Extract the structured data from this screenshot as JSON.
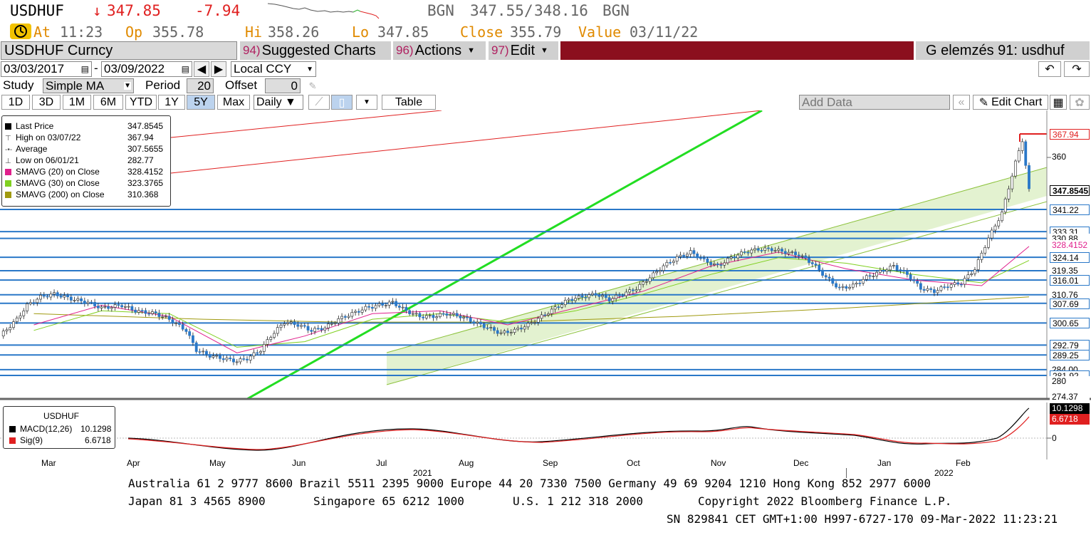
{
  "quote": {
    "ticker": "USDHUF",
    "arrow": "↓",
    "last": "347.85",
    "change": "-7.94",
    "bid_ccy": "BGN",
    "bid": "347.55",
    "sep": "/",
    "ask": "348.16",
    "ask_ccy": "BGN",
    "at_label": "At",
    "at_time": "11:23",
    "op_label": "Op",
    "op": "355.78",
    "hi_label": "Hi",
    "hi": "358.26",
    "lo_label": "Lo",
    "lo": "347.85",
    "close_label": "Close",
    "close": "355.79",
    "value_label": "Value",
    "value_date": "03/11/22"
  },
  "toolbar": {
    "security": "USDHUF Curncy",
    "suggested_num": "94)",
    "suggested_label": "Suggested Charts",
    "actions_num": "96)",
    "actions_label": "Actions",
    "edit_num": "97)",
    "edit_label": "Edit",
    "page_title": "G elemzés 91: usdhuf"
  },
  "controls": {
    "start_date": "03/03/2017",
    "dash": "-",
    "end_date": "03/09/2022",
    "currency": "Local CCY",
    "study_label": "Study",
    "study_value": "Simple MA",
    "period_label": "Period",
    "period_value": "20",
    "offset_label": "Offset",
    "offset_value": "0",
    "ranges": [
      "1D",
      "3D",
      "1M",
      "6M",
      "YTD",
      "1Y",
      "5Y",
      "Max"
    ],
    "active_range": "5Y",
    "frequency": "Daily ▼",
    "table_label": "Table",
    "add_data_placeholder": "Add Data",
    "edit_chart_label": "Edit Chart"
  },
  "legend": {
    "items": [
      {
        "label": "Last Price",
        "value": "347.8545",
        "color": "#000000",
        "marker": "square"
      },
      {
        "label": "High on 03/07/22",
        "value": "367.94",
        "color": "#555555",
        "marker": "high"
      },
      {
        "label": "Average",
        "value": "307.5655",
        "color": "#555555",
        "marker": "avg"
      },
      {
        "label": "Low on 06/01/21",
        "value": "282.77",
        "color": "#555555",
        "marker": "low"
      },
      {
        "label": "SMAVG (20)  on Close",
        "value": "328.4152",
        "color": "#e0208c",
        "marker": "square"
      },
      {
        "label": "SMAVG (30)  on Close",
        "value": "323.3765",
        "color": "#80d020",
        "marker": "square"
      },
      {
        "label": "SMAVG (200)  on Close",
        "value": "310.368",
        "color": "#a09a10",
        "marker": "square"
      }
    ]
  },
  "price_labels": {
    "high": "367.94",
    "tick_360": "360",
    "last": "347.8545",
    "levels": [
      "341.22",
      "333.31",
      "330.88",
      "328.4152",
      "324.14",
      "319.35",
      "316.01",
      "310.76",
      "307.69",
      "300.65",
      "292.79",
      "289.25",
      "284.00",
      "281.92",
      "280",
      "274.37"
    ]
  },
  "macd": {
    "title": "USDHUF",
    "macd_label": "MACD(12,26)",
    "macd_value": "10.1298",
    "sig_label": "Sig(9)",
    "sig_value": "6.6718",
    "macd_tag": "10.1298",
    "sig_tag": "6.6718",
    "zero": "0"
  },
  "x_axis": {
    "months": [
      "Mar",
      "Apr",
      "May",
      "Jun",
      "Jul",
      "Aug",
      "Sep",
      "Oct",
      "Nov",
      "Dec",
      "Jan",
      "Feb"
    ],
    "year_2021": "2021",
    "year_2022": "2022"
  },
  "footer": {
    "line1": "Australia 61 2 9777 8600 Brazil 5511 2395 9000 Europe 44 20 7330 7500 Germany 49 69 9204 1210 Hong Kong 852 2977 6000",
    "line2a": "Japan 81 3 4565 8900",
    "line2b": "Singapore 65 6212 1000",
    "line2c": "U.S. 1 212 318 2000",
    "line2d": "Copyright 2022 Bloomberg Finance L.P.",
    "line3": "SN 829841 CET  GMT+1:00 H997-6727-170 09-Mar-2022 11:23:21"
  },
  "colors": {
    "accent_red": "#8b0f1e",
    "level_blue": "#2a78c8",
    "candle_blue": "#2a78c8",
    "trend_green": "#22dd22",
    "channel_green": "#d9efc0",
    "trend_red": "#e02020"
  },
  "chart_data": {
    "type": "candlestick",
    "title": "USDHUF Curncy",
    "x_range": [
      "2021-03",
      "2022-03"
    ],
    "ylim": [
      274,
      372
    ],
    "series": [
      {
        "name": "Last Price",
        "points": [
          [
            0,
            296
          ],
          [
            5,
            302
          ],
          [
            8,
            307
          ],
          [
            12,
            310
          ],
          [
            16,
            311
          ],
          [
            22,
            309
          ],
          [
            26,
            308
          ],
          [
            30,
            306
          ],
          [
            36,
            307
          ],
          [
            40,
            305
          ],
          [
            46,
            304
          ],
          [
            50,
            302
          ],
          [
            55,
            298
          ],
          [
            58,
            291
          ],
          [
            62,
            289
          ],
          [
            66,
            288
          ],
          [
            70,
            287
          ],
          [
            73,
            288
          ],
          [
            77,
            291
          ],
          [
            80,
            296
          ],
          [
            84,
            301
          ],
          [
            88,
            300
          ],
          [
            92,
            298
          ],
          [
            96,
            299
          ],
          [
            100,
            302
          ],
          [
            104,
            304
          ],
          [
            108,
            306
          ],
          [
            112,
            307
          ],
          [
            116,
            308
          ],
          [
            120,
            305
          ],
          [
            124,
            303
          ],
          [
            128,
            303
          ],
          [
            132,
            304
          ],
          [
            136,
            303
          ],
          [
            140,
            301
          ],
          [
            144,
            299
          ],
          [
            148,
            297
          ],
          [
            152,
            298
          ],
          [
            156,
            300
          ],
          [
            160,
            303
          ],
          [
            164,
            306
          ],
          [
            168,
            309
          ],
          [
            172,
            310
          ],
          [
            176,
            311
          ],
          [
            180,
            309
          ],
          [
            184,
            311
          ],
          [
            188,
            313
          ],
          [
            192,
            317
          ],
          [
            196,
            321
          ],
          [
            200,
            324
          ],
          [
            204,
            326
          ],
          [
            208,
            323
          ],
          [
            212,
            321
          ],
          [
            216,
            324
          ],
          [
            220,
            326
          ],
          [
            224,
            327
          ],
          [
            228,
            327
          ],
          [
            232,
            326
          ],
          [
            236,
            325
          ],
          [
            240,
            322
          ],
          [
            244,
            317
          ],
          [
            248,
            313
          ],
          [
            252,
            314
          ],
          [
            256,
            317
          ],
          [
            260,
            319
          ],
          [
            264,
            321
          ],
          [
            268,
            318
          ],
          [
            272,
            313
          ],
          [
            276,
            312
          ],
          [
            280,
            314
          ],
          [
            284,
            315
          ],
          [
            288,
            320
          ],
          [
            292,
            331
          ],
          [
            296,
            340
          ],
          [
            300,
            358
          ],
          [
            302,
            366
          ],
          [
            304,
            348
          ]
        ]
      },
      {
        "name": "SMAVG (20)  on Close",
        "points": [
          [
            10,
            300
          ],
          [
            30,
            307
          ],
          [
            50,
            303
          ],
          [
            70,
            290
          ],
          [
            90,
            296
          ],
          [
            110,
            304
          ],
          [
            130,
            305
          ],
          [
            150,
            300
          ],
          [
            170,
            306
          ],
          [
            190,
            312
          ],
          [
            210,
            321
          ],
          [
            230,
            326
          ],
          [
            250,
            320
          ],
          [
            270,
            316
          ],
          [
            290,
            314
          ],
          [
            304,
            328
          ]
        ]
      },
      {
        "name": "SMAVG (30)  on Close",
        "points": [
          [
            10,
            298
          ],
          [
            30,
            305
          ],
          [
            50,
            304
          ],
          [
            70,
            292
          ],
          [
            90,
            294
          ],
          [
            110,
            302
          ],
          [
            130,
            304
          ],
          [
            150,
            301
          ],
          [
            170,
            305
          ],
          [
            190,
            311
          ],
          [
            210,
            318
          ],
          [
            230,
            324
          ],
          [
            250,
            322
          ],
          [
            270,
            318
          ],
          [
            290,
            315
          ],
          [
            304,
            323
          ]
        ]
      },
      {
        "name": "SMAVG (200)  on Close",
        "points": [
          [
            10,
            304
          ],
          [
            60,
            302
          ],
          [
            100,
            301
          ],
          [
            150,
            301
          ],
          [
            200,
            303
          ],
          [
            250,
            306
          ],
          [
            304,
            310
          ]
        ]
      }
    ],
    "horizontal_levels": [
      341.22,
      333.31,
      330.88,
      324.14,
      319.35,
      316.01,
      310.76,
      307.69,
      300.65,
      292.79,
      289.25,
      284.0,
      281.92
    ],
    "legend_position": "top-left"
  }
}
